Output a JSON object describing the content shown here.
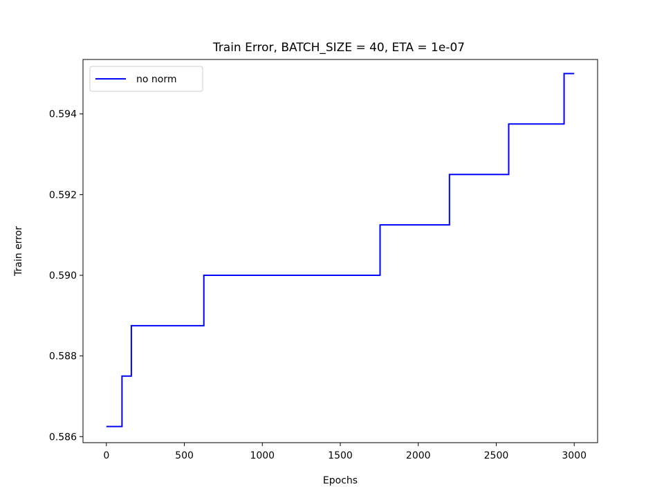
{
  "chart_data": {
    "type": "line",
    "title": "Train Error, BATCH_SIZE = 40, ETA = 1e-07",
    "xlabel": "Epochs",
    "ylabel": "Train error",
    "xlim": [
      -150,
      3150
    ],
    "ylim": [
      0.58585,
      0.59535
    ],
    "xticks": [
      0,
      500,
      1000,
      1500,
      2000,
      2500,
      3000
    ],
    "xtick_labels": [
      "0",
      "500",
      "1000",
      "1500",
      "2000",
      "2500",
      "3000"
    ],
    "yticks": [
      0.586,
      0.588,
      0.59,
      0.592,
      0.594
    ],
    "ytick_labels": [
      "0.586",
      "0.588",
      "0.590",
      "0.592",
      "0.594"
    ],
    "grid": false,
    "legend_position": "top-left",
    "series": [
      {
        "name": "no norm",
        "color": "#0000ff",
        "step": "post",
        "x": [
          0,
          100,
          160,
          625,
          1755,
          2200,
          2580,
          2935,
          3000
        ],
        "y": [
          0.58625,
          0.5875,
          0.58875,
          0.59,
          0.59125,
          0.5925,
          0.59375,
          0.595,
          0.595
        ]
      }
    ]
  }
}
